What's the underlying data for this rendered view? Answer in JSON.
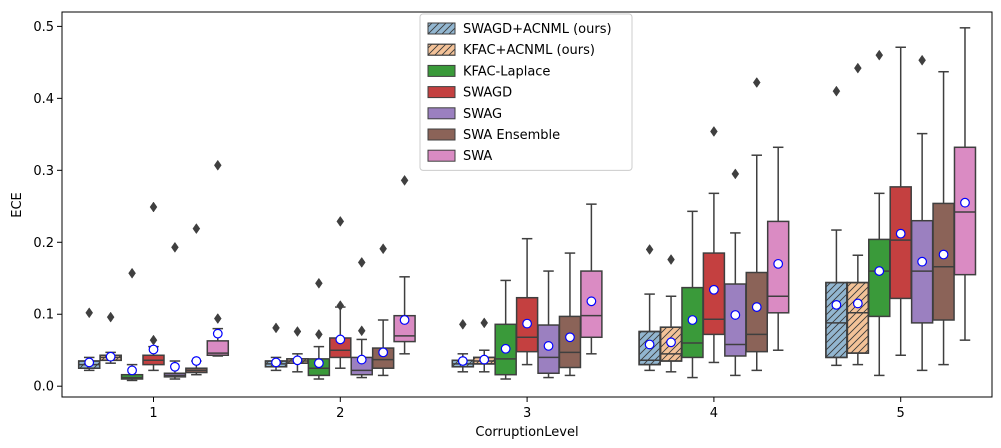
{
  "chart_data": {
    "type": "box",
    "title": "",
    "xlabel": "CorruptionLevel",
    "ylabel": "ECE",
    "ylim": [
      -0.015,
      0.52
    ],
    "yticks": [
      0.0,
      0.1,
      0.2,
      0.3,
      0.4,
      0.5
    ],
    "ytick_labels": [
      "0.0",
      "0.1",
      "0.2",
      "0.3",
      "0.4",
      "0.5"
    ],
    "categories": [
      "1",
      "2",
      "3",
      "4",
      "5"
    ],
    "legend_position": "top-center",
    "series": [
      {
        "name": "SWAGD+ACNML (ours)",
        "color": "#92b6d0",
        "hatch": "////",
        "boxes": [
          {
            "q1": 0.025,
            "med": 0.03,
            "q3": 0.035,
            "wlo": 0.022,
            "whi": 0.04,
            "mean": 0.033,
            "fliers": [
              0.102
            ]
          },
          {
            "q1": 0.027,
            "med": 0.031,
            "q3": 0.035,
            "wlo": 0.022,
            "whi": 0.04,
            "mean": 0.033,
            "fliers": [
              0.081
            ]
          },
          {
            "q1": 0.027,
            "med": 0.031,
            "q3": 0.036,
            "wlo": 0.02,
            "whi": 0.045,
            "mean": 0.035,
            "fliers": [
              0.086
            ]
          },
          {
            "q1": 0.03,
            "med": 0.036,
            "q3": 0.076,
            "wlo": 0.022,
            "whi": 0.128,
            "mean": 0.058,
            "fliers": [
              0.19
            ]
          },
          {
            "q1": 0.04,
            "med": 0.088,
            "q3": 0.144,
            "wlo": 0.029,
            "whi": 0.217,
            "mean": 0.113,
            "fliers": [
              0.41
            ]
          }
        ]
      },
      {
        "name": "KFAC+ACNML (ours)",
        "color": "#f3c298",
        "hatch": "////",
        "boxes": [
          {
            "q1": 0.036,
            "med": 0.04,
            "q3": 0.043,
            "wlo": 0.032,
            "whi": 0.047,
            "mean": 0.041,
            "fliers": [
              0.096
            ]
          },
          {
            "q1": 0.032,
            "med": 0.035,
            "q3": 0.038,
            "wlo": 0.02,
            "whi": 0.045,
            "mean": 0.036,
            "fliers": [
              0.076
            ]
          },
          {
            "q1": 0.031,
            "med": 0.035,
            "q3": 0.04,
            "wlo": 0.02,
            "whi": 0.05,
            "mean": 0.037,
            "fliers": [
              0.088
            ]
          },
          {
            "q1": 0.035,
            "med": 0.045,
            "q3": 0.082,
            "wlo": 0.02,
            "whi": 0.125,
            "mean": 0.061,
            "fliers": [
              0.176
            ]
          },
          {
            "q1": 0.046,
            "med": 0.102,
            "q3": 0.144,
            "wlo": 0.03,
            "whi": 0.182,
            "mean": 0.115,
            "fliers": [
              0.442
            ]
          }
        ]
      },
      {
        "name": "KFAC-Laplace",
        "color": "#3a9a3a",
        "hatch": "",
        "boxes": [
          {
            "q1": 0.01,
            "med": 0.012,
            "q3": 0.016,
            "wlo": 0.008,
            "whi": 0.03,
            "mean": 0.022,
            "fliers": [
              0.157
            ]
          },
          {
            "q1": 0.015,
            "med": 0.025,
            "q3": 0.038,
            "wlo": 0.01,
            "whi": 0.055,
            "mean": 0.032,
            "fliers": [
              0.143,
              0.072
            ]
          },
          {
            "q1": 0.016,
            "med": 0.038,
            "q3": 0.086,
            "wlo": 0.01,
            "whi": 0.147,
            "mean": 0.052,
            "fliers": []
          },
          {
            "q1": 0.04,
            "med": 0.06,
            "q3": 0.137,
            "wlo": 0.012,
            "whi": 0.243,
            "mean": 0.092,
            "fliers": []
          },
          {
            "q1": 0.097,
            "med": 0.16,
            "q3": 0.204,
            "wlo": 0.015,
            "whi": 0.268,
            "mean": 0.16,
            "fliers": [
              0.46
            ]
          }
        ]
      },
      {
        "name": "SWAGD",
        "color": "#c44040",
        "hatch": "",
        "boxes": [
          {
            "q1": 0.03,
            "med": 0.036,
            "q3": 0.043,
            "wlo": 0.022,
            "whi": 0.055,
            "mean": 0.051,
            "fliers": [
              0.249,
              0.064
            ]
          },
          {
            "q1": 0.04,
            "med": 0.05,
            "q3": 0.067,
            "wlo": 0.025,
            "whi": 0.11,
            "mean": 0.065,
            "fliers": [
              0.229,
              0.112
            ]
          },
          {
            "q1": 0.048,
            "med": 0.068,
            "q3": 0.123,
            "wlo": 0.03,
            "whi": 0.205,
            "mean": 0.087,
            "fliers": []
          },
          {
            "q1": 0.072,
            "med": 0.093,
            "q3": 0.185,
            "wlo": 0.033,
            "whi": 0.268,
            "mean": 0.134,
            "fliers": [
              0.354
            ]
          },
          {
            "q1": 0.122,
            "med": 0.203,
            "q3": 0.277,
            "wlo": 0.043,
            "whi": 0.471,
            "mean": 0.212,
            "fliers": []
          }
        ]
      },
      {
        "name": "SWAG",
        "color": "#9b80c0",
        "hatch": "",
        "boxes": [
          {
            "q1": 0.013,
            "med": 0.015,
            "q3": 0.018,
            "wlo": 0.01,
            "whi": 0.035,
            "mean": 0.027,
            "fliers": [
              0.193
            ]
          },
          {
            "q1": 0.016,
            "med": 0.022,
            "q3": 0.04,
            "wlo": 0.012,
            "whi": 0.065,
            "mean": 0.037,
            "fliers": [
              0.172,
              0.077
            ]
          },
          {
            "q1": 0.018,
            "med": 0.04,
            "q3": 0.085,
            "wlo": 0.012,
            "whi": 0.16,
            "mean": 0.056,
            "fliers": []
          },
          {
            "q1": 0.042,
            "med": 0.058,
            "q3": 0.142,
            "wlo": 0.015,
            "whi": 0.213,
            "mean": 0.099,
            "fliers": [
              0.295
            ]
          },
          {
            "q1": 0.088,
            "med": 0.16,
            "q3": 0.23,
            "wlo": 0.022,
            "whi": 0.351,
            "mean": 0.173,
            "fliers": [
              0.453
            ]
          }
        ]
      },
      {
        "name": "SWA Ensemble",
        "color": "#8b6358",
        "hatch": "",
        "boxes": [
          {
            "q1": 0.019,
            "med": 0.022,
            "q3": 0.025,
            "wlo": 0.016,
            "whi": 0.035,
            "mean": 0.035,
            "fliers": [
              0.219
            ]
          },
          {
            "q1": 0.025,
            "med": 0.037,
            "q3": 0.053,
            "wlo": 0.015,
            "whi": 0.092,
            "mean": 0.047,
            "fliers": [
              0.191
            ]
          },
          {
            "q1": 0.026,
            "med": 0.047,
            "q3": 0.097,
            "wlo": 0.015,
            "whi": 0.185,
            "mean": 0.068,
            "fliers": []
          },
          {
            "q1": 0.048,
            "med": 0.072,
            "q3": 0.158,
            "wlo": 0.022,
            "whi": 0.321,
            "mean": 0.11,
            "fliers": [
              0.422
            ]
          },
          {
            "q1": 0.092,
            "med": 0.166,
            "q3": 0.254,
            "wlo": 0.03,
            "whi": 0.437,
            "mean": 0.183,
            "fliers": []
          }
        ]
      },
      {
        "name": "SWA",
        "color": "#da8bc3",
        "hatch": "",
        "boxes": [
          {
            "q1": 0.043,
            "med": 0.046,
            "q3": 0.063,
            "wlo": 0.042,
            "whi": 0.08,
            "mean": 0.073,
            "fliers": [
              0.307,
              0.094
            ]
          },
          {
            "q1": 0.062,
            "med": 0.07,
            "q3": 0.098,
            "wlo": 0.045,
            "whi": 0.152,
            "mean": 0.092,
            "fliers": [
              0.286
            ]
          },
          {
            "q1": 0.068,
            "med": 0.098,
            "q3": 0.16,
            "wlo": 0.045,
            "whi": 0.253,
            "mean": 0.118,
            "fliers": []
          },
          {
            "q1": 0.102,
            "med": 0.125,
            "q3": 0.229,
            "wlo": 0.05,
            "whi": 0.332,
            "mean": 0.17,
            "fliers": []
          },
          {
            "q1": 0.155,
            "med": 0.242,
            "q3": 0.332,
            "wlo": 0.064,
            "whi": 0.498,
            "mean": 0.255,
            "fliers": []
          }
        ]
      }
    ]
  }
}
